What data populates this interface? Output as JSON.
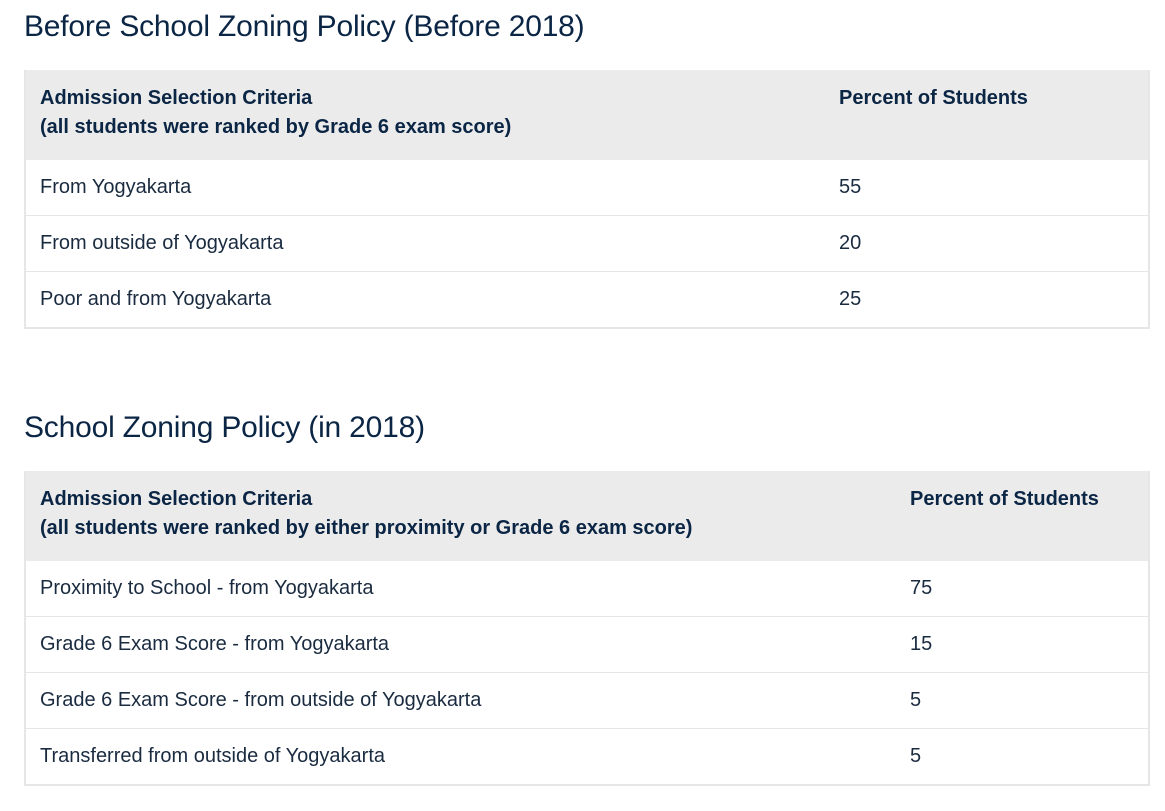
{
  "sections": [
    {
      "title": "Before School Zoning Policy (Before 2018)",
      "header": {
        "criteria_line1": "Admission Selection Criteria",
        "criteria_line2": "(all students were ranked by Grade 6 exam score)",
        "percent": "Percent of Students"
      },
      "rows": [
        {
          "criteria": "From Yogyakarta",
          "percent": "55"
        },
        {
          "criteria": "From outside of Yogyakarta",
          "percent": "20"
        },
        {
          "criteria": "Poor and from Yogyakarta",
          "percent": "25"
        }
      ]
    },
    {
      "title": "School Zoning Policy (in 2018)",
      "header": {
        "criteria_line1": "Admission Selection Criteria",
        "criteria_line2": "(all students were ranked by either proximity or Grade 6 exam score)",
        "percent": "Percent of Students"
      },
      "rows": [
        {
          "criteria": "Proximity to School - from Yogyakarta",
          "percent": "75"
        },
        {
          "criteria": "Grade 6 Exam Score - from Yogyakarta",
          "percent": "15"
        },
        {
          "criteria": "Grade 6 Exam Score - from outside of Yogyakarta",
          "percent": "5"
        },
        {
          "criteria": "Transferred from outside of Yogyakarta",
          "percent": "5"
        }
      ]
    }
  ]
}
